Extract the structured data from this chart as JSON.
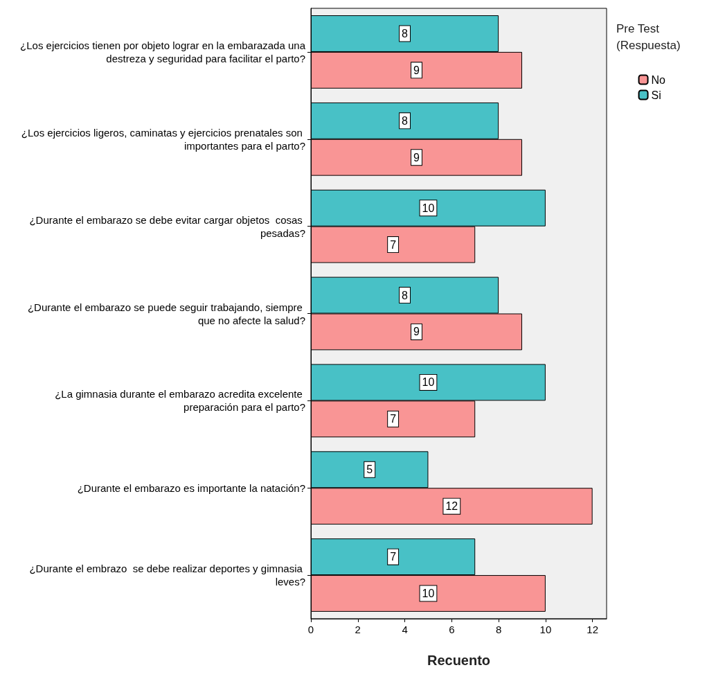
{
  "chart_data": {
    "type": "bar",
    "orientation": "horizontal",
    "xlabel": "Recuento",
    "legend_title": "Pre Test (Respuesta)",
    "categories": [
      "¿Los ejercicios tienen por objeto lograr en la embarazada una destreza y seguridad para facilitar el parto?",
      "¿Los ejercicios ligeros, caminatas y ejercicios prenatales son importantes para el parto?",
      "¿Durante el embarazo se debe evitar cargar objetos  cosas pesadas?",
      "¿Durante el embarazo se puede seguir trabajando, siempre que no afecte la salud?",
      "¿La gimnasia durante el embarazo acredita excelente preparación para el parto?",
      "¿Durante el embarazo es importante la natación?",
      "¿Durante el embrazo  se debe realizar deportes y gimnasia leves?"
    ],
    "series": [
      {
        "name": "Si",
        "color": "#48c1c6",
        "values": [
          8,
          8,
          10,
          8,
          10,
          5,
          7
        ]
      },
      {
        "name": "No",
        "color": "#f99595",
        "values": [
          9,
          9,
          7,
          9,
          7,
          12,
          10
        ]
      }
    ],
    "xlim": [
      0,
      12.6
    ],
    "xticks": [
      0,
      2,
      4,
      6,
      8,
      10,
      12
    ],
    "data_labels": true,
    "grid": false,
    "legend": "top right"
  }
}
